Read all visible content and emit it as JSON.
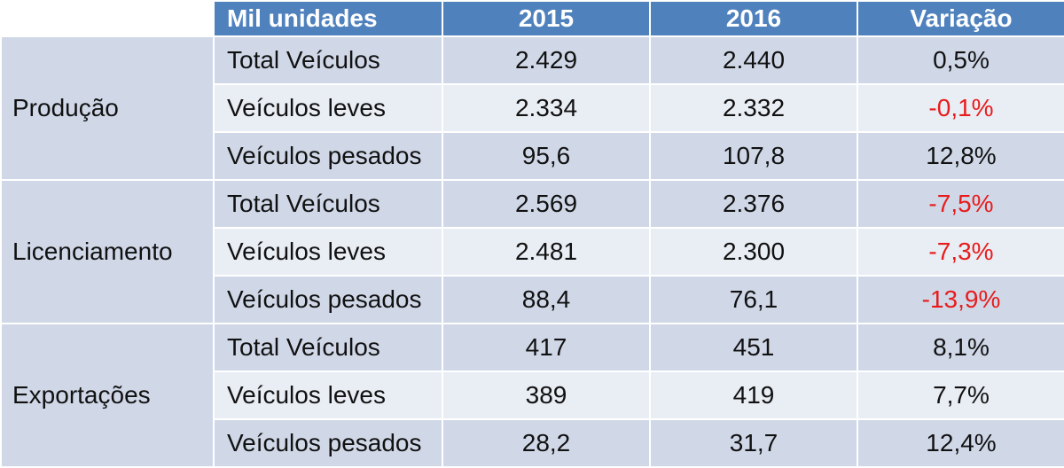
{
  "chart_data": {
    "type": "table",
    "columns": [
      "",
      "Mil unidades",
      "2015",
      "2016",
      "Variação"
    ],
    "groups": [
      {
        "category": "Produção",
        "rows": [
          {
            "item": "Total Veículos",
            "v2015": "2.429",
            "v2016": "2.440",
            "variacao": "0,5%"
          },
          {
            "item": "Veículos leves",
            "v2015": "2.334",
            "v2016": "2.332",
            "variacao": "-0,1%"
          },
          {
            "item": "Veículos pesados",
            "v2015": "95,6",
            "v2016": "107,8",
            "variacao": "12,8%"
          }
        ]
      },
      {
        "category": "Licenciamento",
        "rows": [
          {
            "item": "Total Veículos",
            "v2015": "2.569",
            "v2016": "2.376",
            "variacao": "-7,5%"
          },
          {
            "item": "Veículos leves",
            "v2015": "2.481",
            "v2016": "2.300",
            "variacao": "-7,3%"
          },
          {
            "item": "Veículos pesados",
            "v2015": "88,4",
            "v2016": "76,1",
            "variacao": "-13,9%"
          }
        ]
      },
      {
        "category": "Exportações",
        "rows": [
          {
            "item": "Total Veículos",
            "v2015": "417",
            "v2016": "451",
            "variacao": "8,1%"
          },
          {
            "item": "Veículos leves",
            "v2015": "389",
            "v2016": "419",
            "variacao": "7,7%"
          },
          {
            "item": "Veículos pesados",
            "v2015": "28,2",
            "v2016": "31,7",
            "variacao": "12,4%"
          }
        ]
      }
    ]
  },
  "colors": {
    "header_bg": "#4f81bd",
    "band_dark": "#d0d8e8",
    "band_light": "#e9edf4",
    "negative": "#e81c1c"
  }
}
